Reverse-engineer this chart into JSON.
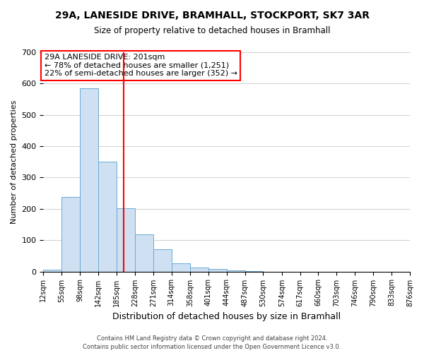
{
  "title": "29A, LANESIDE DRIVE, BRAMHALL, STOCKPORT, SK7 3AR",
  "subtitle": "Size of property relative to detached houses in Bramhall",
  "xlabel": "Distribution of detached houses by size in Bramhall",
  "ylabel": "Number of detached properties",
  "bin_edges": [
    12,
    55,
    98,
    142,
    185,
    228,
    271,
    314,
    358,
    401,
    444,
    487,
    530,
    574,
    617,
    660,
    703,
    746,
    790,
    833,
    876
  ],
  "bin_heights": [
    5,
    238,
    585,
    350,
    203,
    118,
    72,
    27,
    13,
    8,
    3,
    1,
    0,
    0,
    0,
    0,
    0,
    0,
    0,
    0
  ],
  "bar_facecolor": "#cfe0f3",
  "bar_edgecolor": "#6aaad4",
  "property_line_x": 201,
  "property_line_color": "red",
  "annotation_title": "29A LANESIDE DRIVE: 201sqm",
  "annotation_line1": "← 78% of detached houses are smaller (1,251)",
  "annotation_line2": "22% of semi-detached houses are larger (352) →",
  "annotation_box_edgecolor": "red",
  "annotation_box_facecolor": "white",
  "ylim": [
    0,
    700
  ],
  "yticks": [
    0,
    100,
    200,
    300,
    400,
    500,
    600,
    700
  ],
  "footer_line1": "Contains HM Land Registry data © Crown copyright and database right 2024.",
  "footer_line2": "Contains public sector information licensed under the Open Government Licence v3.0.",
  "background_color": "#ffffff",
  "grid_color": "#d0d0d0",
  "title_fontsize": 10,
  "subtitle_fontsize": 8.5,
  "ylabel_fontsize": 8,
  "xlabel_fontsize": 9,
  "tick_fontsize": 7,
  "ytick_fontsize": 8,
  "footer_fontsize": 6,
  "annot_fontsize": 8
}
